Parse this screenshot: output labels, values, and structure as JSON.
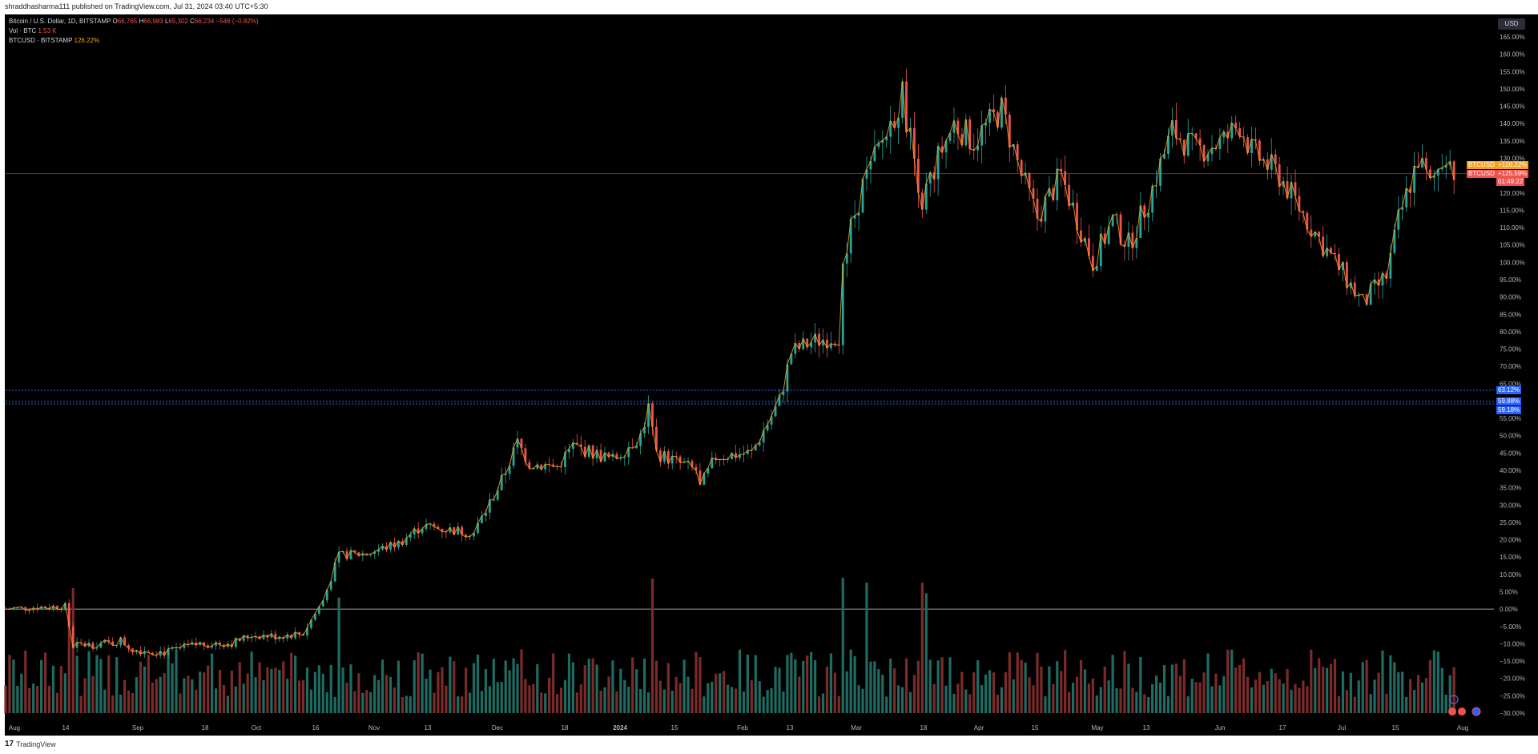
{
  "header": {
    "publish_line": "shraddhasharma111 published on TradingView.com, Jul 31, 2024 03:40 UTC+5:30"
  },
  "legend": {
    "title": "Bitcoin / U.S. Dollar, 1D, BITSTAMP",
    "o_label": "O",
    "o": "66,765",
    "h_label": "H",
    "h": "66,983",
    "l_label": "L",
    "l": "65,302",
    "c_label": "C",
    "c": "66,234",
    "change": "−546 (−0.82%)",
    "vol_label": "Vol · BTC",
    "vol": "1.53 K",
    "symbol_label": "BTCUSD · BITSTAMP",
    "symbol_value": "126.22%"
  },
  "scale_button": "USD",
  "price_labels": {
    "label1_name": "BTCUSD",
    "label1_value": "+126.22%",
    "label2_name": "BTCUSD",
    "label2_value": "+125.59%",
    "countdown": "01:49:22",
    "line1": "63.12%",
    "line2": "59.88%",
    "line3": "59.18%"
  },
  "footer": {
    "brand": "TradingView"
  },
  "colors": {
    "up": "#26a69a",
    "down": "#ef5350",
    "up_volume": "#1f6b62",
    "down_volume": "#7a2b2a",
    "orange": "#f7a21b",
    "blue_line": "#2962ff",
    "background": "#000000"
  },
  "chart_data": {
    "type": "candlestick",
    "title": "Bitcoin / U.S. Dollar, 1D, BITSTAMP",
    "y_unit": "percent change",
    "ylim": [
      -31,
      166
    ],
    "y_ticks": [
      "165.00%",
      "160.00%",
      "155.00%",
      "150.00%",
      "145.00%",
      "140.00%",
      "135.00%",
      "130.00%",
      "125.00%",
      "120.00%",
      "115.00%",
      "110.00%",
      "105.00%",
      "100.00%",
      "95.00%",
      "90.00%",
      "85.00%",
      "80.00%",
      "75.00%",
      "70.00%",
      "65.00%",
      "60.00%",
      "55.00%",
      "50.00%",
      "45.00%",
      "40.00%",
      "35.00%",
      "30.00%",
      "25.00%",
      "20.00%",
      "15.00%",
      "10.00%",
      "5.00%",
      "0.00%",
      "−5.00%",
      "−10.00%",
      "−15.00%",
      "−20.00%",
      "−25.00%",
      "−30.00%"
    ],
    "x_ticks": [
      "Aug",
      "14",
      "Sep",
      "18",
      "Oct",
      "16",
      "Nov",
      "13",
      "Dec",
      "18",
      "2024",
      "15",
      "Feb",
      "13",
      "Mar",
      "18",
      "Apr",
      "15",
      "May",
      "13",
      "Jun",
      "17",
      "Jul",
      "15",
      "Aug"
    ],
    "horizontal_lines": [
      63.12,
      59.88,
      59.18,
      125.59
    ],
    "zero_line": 0,
    "x_range": [
      "2023-08-01",
      "2024-08-03"
    ],
    "close_anchors": [
      [
        "2023-08-01",
        0
      ],
      [
        "2023-08-08",
        0.5
      ],
      [
        "2023-08-16",
        0.8
      ],
      [
        "2023-08-18",
        -10.5
      ],
      [
        "2023-08-28",
        -9.8
      ],
      [
        "2023-08-30",
        -9.0
      ],
      [
        "2023-09-02",
        -11.5
      ],
      [
        "2023-09-11",
        -12.5
      ],
      [
        "2023-09-19",
        -10.0
      ],
      [
        "2023-09-27",
        -9.8
      ],
      [
        "2023-10-02",
        -7.5
      ],
      [
        "2023-10-08",
        -7.8
      ],
      [
        "2023-10-15",
        -7.0
      ],
      [
        "2023-10-20",
        2.5
      ],
      [
        "2023-10-24",
        15.5
      ],
      [
        "2023-10-31",
        16.0
      ],
      [
        "2023-11-08",
        19.0
      ],
      [
        "2023-11-14",
        24.0
      ],
      [
        "2023-11-20",
        23.0
      ],
      [
        "2023-11-27",
        22.0
      ],
      [
        "2023-12-04",
        37.0
      ],
      [
        "2023-12-08",
        48.0
      ],
      [
        "2023-12-11",
        42.0
      ],
      [
        "2023-12-18",
        41.0
      ],
      [
        "2023-12-22",
        47.0
      ],
      [
        "2024-01-01",
        43.0
      ],
      [
        "2024-01-08",
        50.0
      ],
      [
        "2024-01-10",
        58.0
      ],
      [
        "2024-01-12",
        45.0
      ],
      [
        "2024-01-22",
        40.0
      ],
      [
        "2024-01-23",
        35.0
      ],
      [
        "2024-01-27",
        44.0
      ],
      [
        "2024-02-05",
        45.0
      ],
      [
        "2024-02-12",
        60.0
      ],
      [
        "2024-02-15",
        74.0
      ],
      [
        "2024-02-20",
        77.0
      ],
      [
        "2024-02-27",
        79.0
      ],
      [
        "2024-02-28",
        97.0
      ],
      [
        "2024-03-01",
        110.0
      ],
      [
        "2024-03-04",
        122.0
      ],
      [
        "2024-03-11",
        140.0
      ],
      [
        "2024-03-14",
        148.0
      ],
      [
        "2024-03-19",
        118.0
      ],
      [
        "2024-03-23",
        130.0
      ],
      [
        "2024-03-27",
        140.0
      ],
      [
        "2024-04-01",
        135.0
      ],
      [
        "2024-04-08",
        144.0
      ],
      [
        "2024-04-13",
        125.0
      ],
      [
        "2024-04-17",
        113.0
      ],
      [
        "2024-04-23",
        125.0
      ],
      [
        "2024-05-01",
        100.0
      ],
      [
        "2024-05-06",
        112.0
      ],
      [
        "2024-05-10",
        105.0
      ],
      [
        "2024-05-15",
        118.0
      ],
      [
        "2024-05-21",
        138.0
      ],
      [
        "2024-05-27",
        132.0
      ],
      [
        "2024-06-03",
        135.0
      ],
      [
        "2024-06-07",
        140.0
      ],
      [
        "2024-06-10",
        132.0
      ],
      [
        "2024-06-17",
        125.0
      ],
      [
        "2024-06-24",
        112.0
      ],
      [
        "2024-06-28",
        105.0
      ],
      [
        "2024-07-04",
        95.0
      ],
      [
        "2024-07-08",
        88.0
      ],
      [
        "2024-07-14",
        96.0
      ],
      [
        "2024-07-17",
        112.0
      ],
      [
        "2024-07-22",
        130.0
      ],
      [
        "2024-07-25",
        122.0
      ],
      [
        "2024-07-29",
        132.0
      ],
      [
        "2024-07-31",
        126.22
      ]
    ],
    "volume_spike_dates": [
      "2023-08-17",
      "2023-08-18",
      "2023-10-24",
      "2024-01-11",
      "2024-02-28",
      "2024-03-05",
      "2024-03-19",
      "2024-03-20"
    ]
  }
}
